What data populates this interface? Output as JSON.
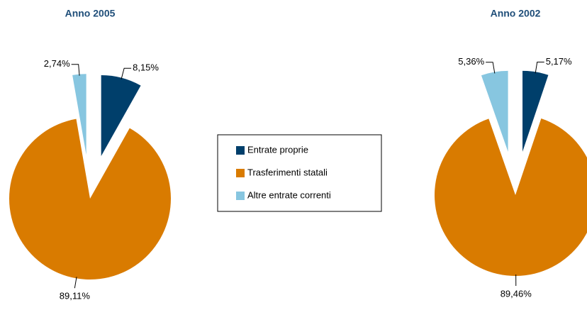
{
  "chart_data": [
    {
      "type": "pie",
      "title": "Anno 2005",
      "categories": [
        "Entrate proprie",
        "Trasferimenti statali",
        "Altre entrate correnti"
      ],
      "colors": [
        "#003f6b",
        "#d97b00",
        "#87c6e0"
      ],
      "values": [
        8.15,
        89.11,
        2.74
      ],
      "value_labels": [
        "8,15%",
        "89,11%",
        "2,74%"
      ]
    },
    {
      "type": "pie",
      "title": "Anno 2002",
      "values": [
        5.17,
        89.46,
        5.36
      ],
      "value_labels": [
        "5,17%",
        "89,46%",
        "5,36%"
      ]
    }
  ]
}
